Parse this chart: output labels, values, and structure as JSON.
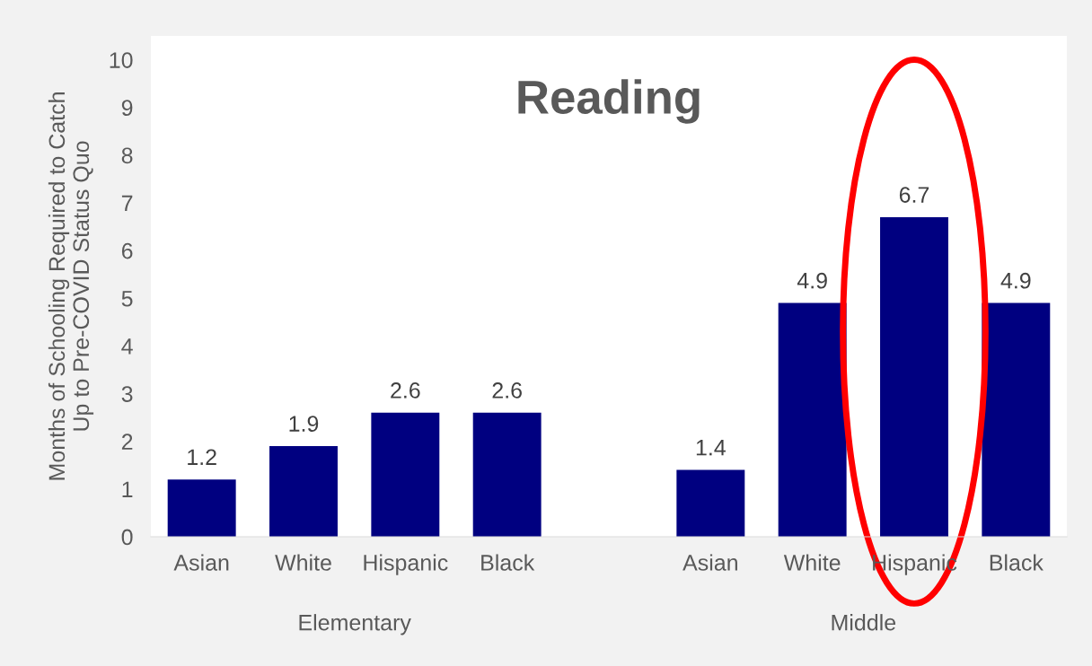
{
  "chart_data": {
    "type": "bar",
    "title": "Reading",
    "ylabel": "Months of Schooling Required to Catch\nUp to Pre-COVID Status Quo",
    "categories": [
      "Asian",
      "White",
      "Hispanic",
      "Black",
      null,
      "Asian",
      "White",
      "Hispanic",
      "Black"
    ],
    "values": [
      1.2,
      1.9,
      2.6,
      2.6,
      null,
      1.4,
      4.9,
      6.7,
      4.9
    ],
    "color": "#000080",
    "ylim": [
      0,
      10.5
    ],
    "yticks": [
      0,
      1,
      2,
      3,
      4,
      5,
      6,
      7,
      8,
      9,
      10
    ],
    "data_labels": true,
    "grid": false,
    "annotations": [
      "Elementary",
      "Middle"
    ]
  }
}
